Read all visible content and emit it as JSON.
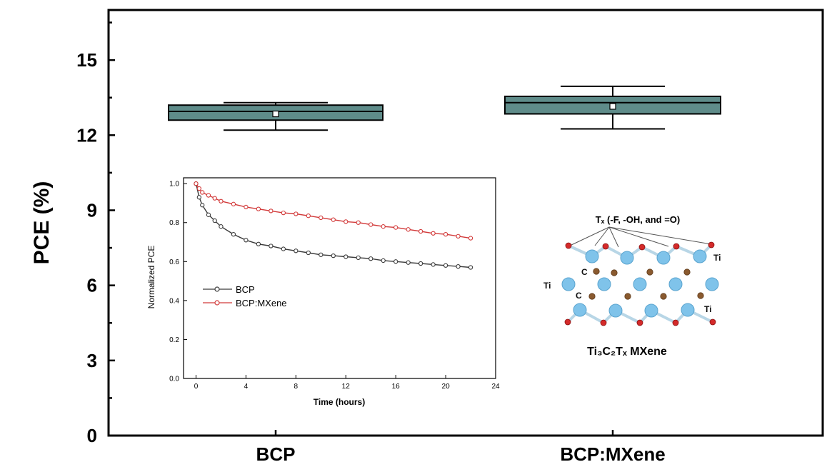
{
  "chart_data": [
    {
      "type": "box",
      "title": "",
      "xlabel": "",
      "ylabel": "PCE (%)",
      "categories": [
        "BCP",
        "BCP:MXene"
      ],
      "ylim": [
        0,
        17
      ],
      "yticks": [
        0,
        3,
        6,
        9,
        12,
        15
      ],
      "boxes": [
        {
          "name": "BCP",
          "min": 12.2,
          "q1": 12.6,
          "median": 12.95,
          "q3": 13.2,
          "max": 13.3,
          "mean": 12.85
        },
        {
          "name": "BCP:MXene",
          "min": 12.25,
          "q1": 12.85,
          "median": 13.3,
          "q3": 13.55,
          "max": 13.95,
          "mean": 13.15
        }
      ],
      "box_color": "#5f8c8a",
      "grid": false
    },
    {
      "type": "line",
      "xlabel": "Time (hours)",
      "ylabel": "Normalized PCE",
      "xlim": [
        -1,
        24
      ],
      "ylim": [
        0.0,
        1.03
      ],
      "xticks": [
        0,
        4,
        8,
        12,
        16,
        20,
        24
      ],
      "yticks": [
        "0.0",
        "0.2",
        "0.4",
        "0.6",
        "0.8",
        "1.0"
      ],
      "legend_position": "left-middle",
      "series": [
        {
          "name": "BCP",
          "color": "#3a3a3a",
          "x": [
            0,
            0.25,
            0.5,
            1,
            1.5,
            2,
            3,
            4,
            5,
            6,
            7,
            8,
            9,
            10,
            11,
            12,
            13,
            14,
            15,
            16,
            17,
            18,
            19,
            20,
            21,
            22
          ],
          "y": [
            1.0,
            0.93,
            0.89,
            0.84,
            0.81,
            0.78,
            0.74,
            0.71,
            0.69,
            0.68,
            0.665,
            0.655,
            0.645,
            0.635,
            0.63,
            0.625,
            0.62,
            0.615,
            0.605,
            0.6,
            0.595,
            0.59,
            0.585,
            0.58,
            0.575,
            0.57
          ]
        },
        {
          "name": "BCP:MXene",
          "color": "#d23a3a",
          "x": [
            0,
            0.25,
            0.5,
            1,
            1.5,
            2,
            3,
            4,
            5,
            6,
            7,
            8,
            9,
            10,
            11,
            12,
            13,
            14,
            15,
            16,
            17,
            18,
            19,
            20,
            21,
            22
          ],
          "y": [
            1.0,
            0.975,
            0.955,
            0.94,
            0.925,
            0.91,
            0.895,
            0.88,
            0.87,
            0.86,
            0.85,
            0.845,
            0.835,
            0.825,
            0.815,
            0.805,
            0.8,
            0.79,
            0.78,
            0.775,
            0.765,
            0.755,
            0.745,
            0.74,
            0.73,
            0.72
          ]
        }
      ]
    }
  ],
  "structure": {
    "terminations_label": "Tₓ (-F, -OH, and =O)",
    "atom_labels": [
      "Ti",
      "C",
      "Ti",
      "C",
      "Ti"
    ],
    "caption": "Ti₃C₂Tₓ MXene",
    "colors": {
      "ti": "#7fc3ea",
      "c": "#8a5a2f",
      "o": "#d42a2a",
      "bond": "#b8d6e6"
    }
  }
}
